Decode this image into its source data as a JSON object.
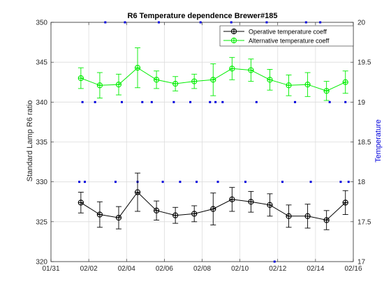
{
  "chart_data": {
    "type": "line",
    "title": "R6 Temperature dependence Brewer#185",
    "xlabel": "",
    "ylabel": "Standard Lamp R6 ratio",
    "y2label": "Temperature",
    "xlim": [
      "01/31",
      "02/16"
    ],
    "ylim": [
      320,
      350
    ],
    "y2lim": [
      17,
      20
    ],
    "x_ticks": [
      "01/31",
      "02/02",
      "02/04",
      "02/06",
      "02/08",
      "02/10",
      "02/12",
      "02/14",
      "02/16"
    ],
    "y_ticks": [
      "320",
      "325",
      "330",
      "335",
      "340",
      "345",
      "350"
    ],
    "y2_ticks": [
      "17",
      "17.5",
      "18",
      "18.5",
      "19",
      "19.5",
      "20"
    ],
    "grid": true,
    "legend_position": "top-right",
    "x": [
      "02/01 14:00",
      "02/02 14:00",
      "02/03 14:00",
      "02/04 14:00",
      "02/05 14:00",
      "02/06 14:00",
      "02/07 14:00",
      "02/08 14:00",
      "02/09 14:00",
      "02/10 14:00",
      "02/11 14:00",
      "02/12 14:00",
      "02/13 14:00",
      "02/14 14:00",
      "02/15 14:00"
    ],
    "series": [
      {
        "name": "Operative temperature coeff",
        "color": "#000000",
        "marker": "circle-cross",
        "values": [
          327.4,
          325.9,
          325.5,
          328.7,
          326.4,
          325.8,
          326.0,
          326.6,
          327.8,
          327.5,
          327.1,
          325.7,
          325.7,
          325.2,
          327.4
        ],
        "err": [
          1.3,
          1.6,
          1.4,
          2.4,
          1.2,
          1.0,
          1.0,
          2.0,
          1.5,
          1.3,
          1.4,
          1.4,
          1.5,
          1.2,
          1.5
        ]
      },
      {
        "name": "Alternative temperature coeff",
        "color": "#00ee00",
        "marker": "circle-cross",
        "values": [
          343.0,
          342.1,
          342.2,
          344.3,
          342.8,
          342.3,
          342.6,
          342.8,
          344.2,
          344.0,
          342.8,
          342.1,
          342.2,
          341.4,
          342.5
        ],
        "err": [
          1.3,
          1.6,
          1.3,
          2.5,
          1.1,
          0.9,
          0.9,
          2.0,
          1.4,
          1.4,
          1.3,
          1.3,
          1.5,
          1.2,
          1.4
        ]
      }
    ],
    "temperature_points": {
      "color": "#0000dd",
      "marker": "dot",
      "x": [
        "02/01 12:00",
        "02/01 16:00",
        "02/01 19:00",
        "02/02 08:00",
        "02/02 21:00",
        "02/03 10:00",
        "02/03 18:00",
        "02/03 22:00",
        "02/04 14:00",
        "02/04 20:00",
        "02/05 08:00",
        "02/05 17:00",
        "02/05 22:00",
        "02/06 12:00",
        "02/06 20:00",
        "02/07 09:00",
        "02/07 17:00",
        "02/07 22:00",
        "02/08 10:00",
        "02/08 17:00",
        "02/08 20:00",
        "02/09 02:00",
        "02/09 13:00",
        "02/10 07:00",
        "02/10 21:00",
        "02/11 10:00",
        "02/11 20:00",
        "02/12 06:00",
        "02/12 22:00",
        "02/13 12:00",
        "02/13 18:00",
        "02/14 06:00",
        "02/14 18:00",
        "02/15 08:00",
        "02/15 14:00",
        "02/15 18:00"
      ],
      "values": [
        18.0,
        19.0,
        18.0,
        19.0,
        20.0,
        18.0,
        19.0,
        20.0,
        18.0,
        19.0,
        19.0,
        20.0,
        18.0,
        19.0,
        18.0,
        19.0,
        18.0,
        20.0,
        19.0,
        19.0,
        18.0,
        19.0,
        20.0,
        18.0,
        19.0,
        20.0,
        17.0,
        18.0,
        19.0,
        20.0,
        18.0,
        20.0,
        19.0,
        18.0,
        19.0,
        18.0
      ]
    }
  }
}
